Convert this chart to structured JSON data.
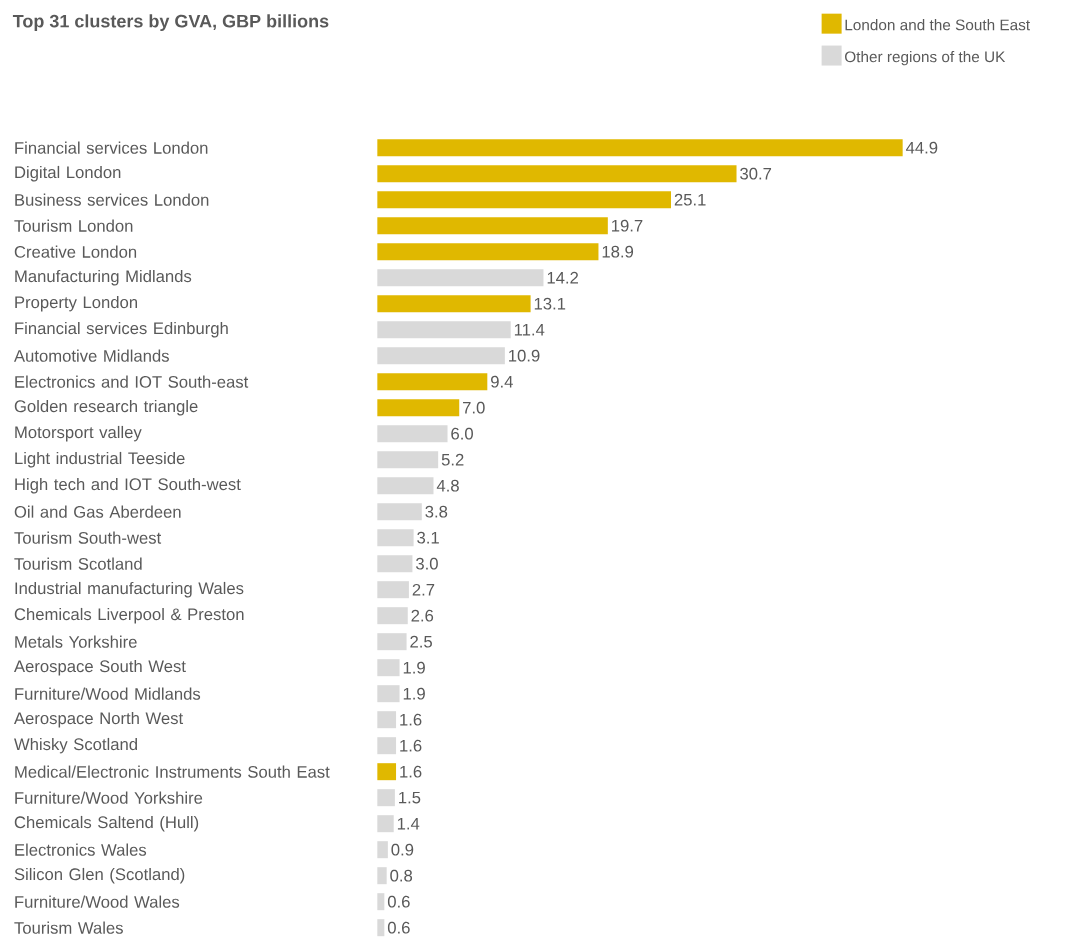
{
  "chart_data": {
    "type": "bar",
    "orientation": "horizontal",
    "title": "Top 31 clusters by GVA, GBP billions",
    "categories": [
      "Financial services London",
      "Digital London",
      "Business services London",
      "Tourism London",
      "Creative London",
      "Manufacturing Midlands",
      "Property London",
      "Financial services Edinburgh",
      "Automotive Midlands",
      "Electronics and IOT South-east",
      "Golden research triangle",
      "Motorsport valley",
      "Light industrial Teeside",
      "High tech and IOT South-west",
      "Oil and Gas Aberdeen",
      "Tourism South-west",
      "Tourism Scotland",
      "Industrial manufacturing Wales",
      "Chemicals Liverpool & Preston",
      "Metals Yorkshire",
      "Aerospace South West",
      "Furniture/Wood Midlands",
      "Aerospace North West",
      "Whisky Scotland",
      "Medical/Electronic Instruments South East",
      "Furniture/Wood Yorkshire",
      "Chemicals Saltend (Hull)",
      "Electronics Wales",
      "Silicon Glen (Scotland)",
      "Furniture/Wood Wales",
      "Tourism Wales"
    ],
    "series": [
      {
        "name": "London and the South East",
        "color": "#e0b800",
        "values": [
          44.9,
          30.7,
          25.1,
          19.7,
          18.9,
          null,
          13.1,
          null,
          null,
          9.4,
          7.0,
          null,
          null,
          null,
          null,
          null,
          null,
          null,
          null,
          null,
          null,
          null,
          null,
          null,
          1.6,
          null,
          null,
          null,
          null,
          null,
          null
        ],
        "value_labels": [
          "44.9",
          "30.7",
          "25.1",
          "19.7",
          "18.9",
          null,
          "13.1",
          null,
          null,
          "9.4",
          "7.0",
          null,
          null,
          null,
          null,
          null,
          null,
          null,
          null,
          null,
          null,
          null,
          null,
          null,
          "1.6",
          null,
          null,
          null,
          null,
          null,
          null
        ]
      },
      {
        "name": "Other regions of the UK",
        "color": "#d9d9d9",
        "values": [
          null,
          null,
          null,
          null,
          null,
          14.2,
          null,
          11.4,
          10.9,
          null,
          null,
          6.0,
          5.2,
          4.8,
          3.8,
          3.1,
          3.0,
          2.7,
          2.6,
          2.5,
          1.9,
          1.9,
          1.6,
          1.6,
          null,
          1.5,
          1.4,
          0.9,
          0.8,
          0.6,
          0.6
        ],
        "value_labels": [
          null,
          null,
          null,
          null,
          null,
          "14.2",
          null,
          "11.4",
          "10.9",
          null,
          null,
          "6.0",
          "5.2",
          "4.8",
          "3.8",
          "3.1",
          "3.0",
          "2.7",
          "2.6",
          "2.5",
          "1.9",
          "1.9",
          "1.6",
          "1.6",
          null,
          "1.5",
          "1.4",
          "0.9",
          "0.8",
          "0.6",
          "0.6"
        ]
      }
    ],
    "legend": "top right"
  }
}
